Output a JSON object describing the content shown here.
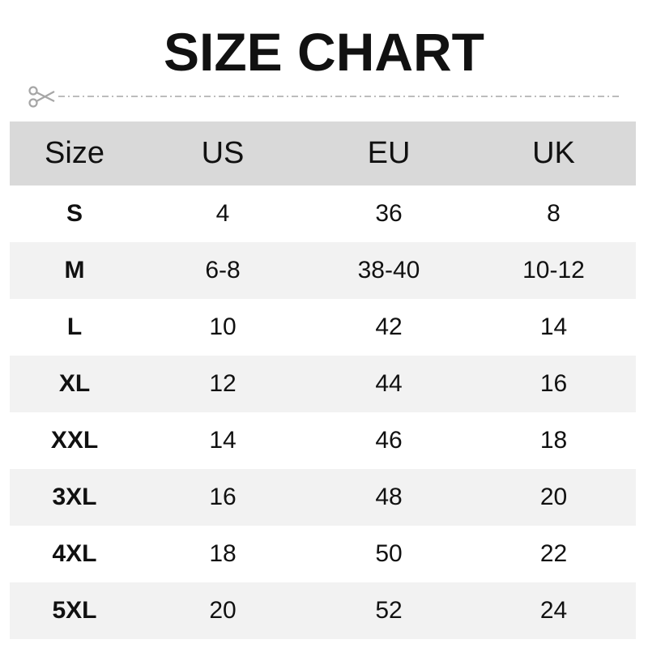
{
  "title": "SIZE CHART",
  "icons": {
    "cut": "scissors-icon"
  },
  "colors": {
    "header_bg": "#d9d9d9",
    "stripe_bg": "#f2f2f2",
    "cutline": "#a6a6a6"
  },
  "table": {
    "headers": [
      "Size",
      "US",
      "EU",
      "UK"
    ],
    "rows": [
      [
        "S",
        "4",
        "36",
        "8"
      ],
      [
        "M",
        "6-8",
        "38-40",
        "10-12"
      ],
      [
        "L",
        "10",
        "42",
        "14"
      ],
      [
        "XL",
        "12",
        "44",
        "16"
      ],
      [
        "XXL",
        "14",
        "46",
        "18"
      ],
      [
        "3XL",
        "16",
        "48",
        "20"
      ],
      [
        "4XL",
        "18",
        "50",
        "22"
      ],
      [
        "5XL",
        "20",
        "52",
        "24"
      ]
    ]
  }
}
